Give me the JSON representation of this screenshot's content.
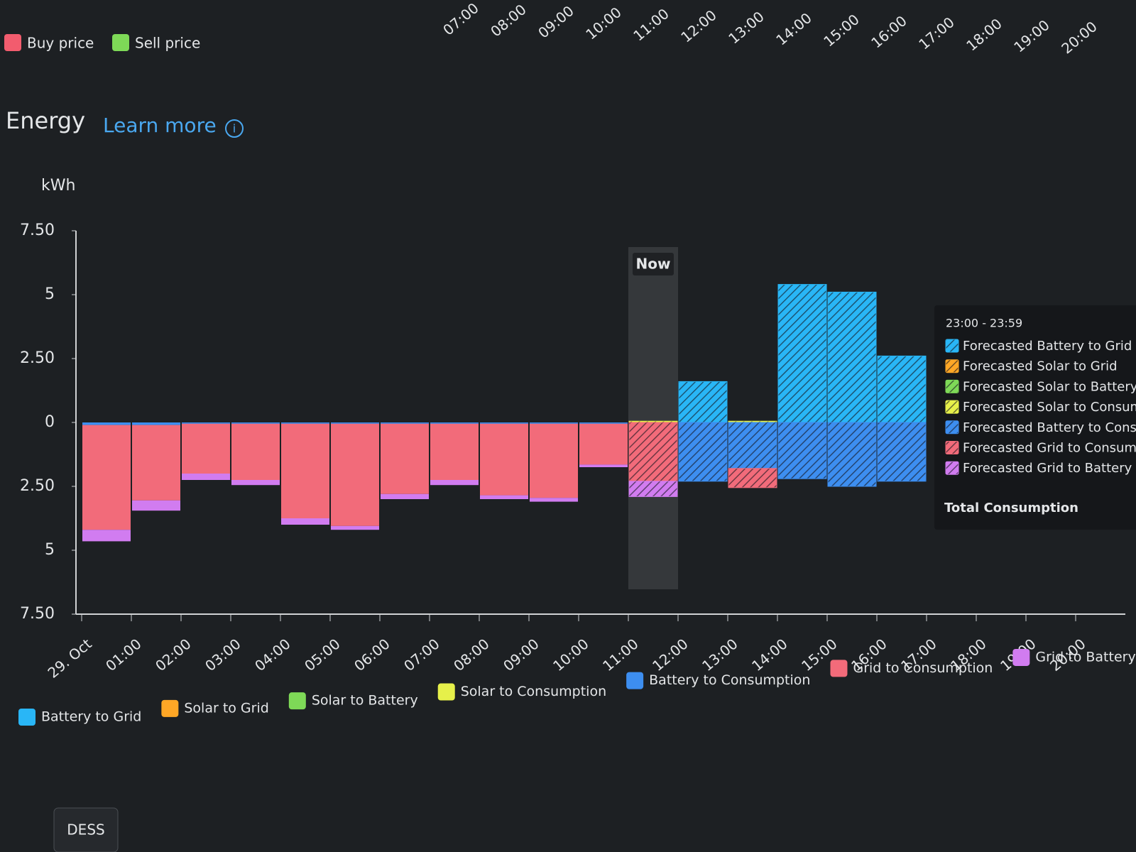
{
  "price_chart": {
    "legend": [
      {
        "name": "Buy price",
        "color": "#f25c6e"
      },
      {
        "name": "Sell price",
        "color": "#7ed957"
      }
    ],
    "x_labels": [
      "07:00",
      "08:00",
      "09:00",
      "10:00",
      "11:00",
      "12:00",
      "13:00",
      "14:00",
      "15:00",
      "16:00",
      "17:00",
      "18:00",
      "19:00",
      "20:00"
    ]
  },
  "header": {
    "title": "Energy",
    "link": "Learn more"
  },
  "chart_data": {
    "type": "bar",
    "stacked": true,
    "y_label": "kWh",
    "categories": [
      "29. Oct",
      "01:00",
      "02:00",
      "03:00",
      "04:00",
      "05:00",
      "06:00",
      "07:00",
      "08:00",
      "09:00",
      "10:00",
      "11:00",
      "12:00",
      "13:00",
      "14:00",
      "15:00",
      "16:00",
      "17:00",
      "18:00",
      "19:00",
      "20:00"
    ],
    "ylim": [
      -7.5,
      7.5
    ],
    "yticks": [
      {
        "value": 7.5,
        "label": "7.50"
      },
      5,
      {
        "value": 2.5,
        "label": "2.50"
      },
      0,
      {
        "value": -2.5,
        "label": "2.50"
      },
      {
        "value": -5,
        "label": "5"
      },
      {
        "value": -7.5,
        "label": "7.50"
      }
    ],
    "grid": false,
    "annotations": [
      {
        "text": "Now",
        "category": "11:00"
      }
    ],
    "series": [
      {
        "name": "Battery to Grid",
        "color": "#29b6f6",
        "hatched": false,
        "values": [
          0,
          0,
          0,
          0,
          0,
          0,
          0,
          0,
          0,
          0,
          0,
          null,
          null,
          null,
          null,
          null,
          null,
          null,
          null,
          null,
          null
        ]
      },
      {
        "name": "Solar to Grid",
        "color": "#ffa726",
        "hatched": false,
        "values": [
          0,
          0,
          0,
          0,
          0,
          0,
          0,
          0,
          0,
          0,
          0,
          null,
          null,
          null,
          null,
          null,
          null,
          null,
          null,
          null,
          null
        ]
      },
      {
        "name": "Solar to Battery",
        "color": "#7ed957",
        "hatched": false,
        "values": [
          0,
          0,
          0,
          0,
          0,
          0,
          0,
          0,
          0,
          0,
          0,
          null,
          null,
          null,
          null,
          null,
          null,
          null,
          null,
          null,
          null
        ]
      },
      {
        "name": "Solar to Consumption",
        "color": "#e6f04a",
        "hatched": false,
        "values": [
          0,
          0,
          0,
          0,
          0,
          0,
          0,
          0,
          0,
          0,
          0,
          null,
          null,
          null,
          null,
          null,
          null,
          null,
          null,
          null,
          null
        ]
      },
      {
        "name": "Battery to Consumption",
        "color": "#3d8ef0",
        "hatched": false,
        "values": [
          -0.1,
          -0.1,
          -0.05,
          -0.05,
          -0.05,
          -0.05,
          -0.05,
          -0.05,
          -0.05,
          -0.05,
          -0.05,
          null,
          null,
          null,
          null,
          null,
          null,
          null,
          null,
          null,
          null
        ]
      },
      {
        "name": "Grid to Consumption",
        "color": "#f26b7a",
        "hatched": false,
        "values": [
          -4.1,
          -2.95,
          -1.95,
          -2.2,
          -3.7,
          -4.0,
          -2.75,
          -2.2,
          -2.8,
          -2.9,
          -1.6,
          null,
          null,
          null,
          null,
          null,
          null,
          null,
          null,
          null,
          null
        ]
      },
      {
        "name": "Grid to Battery",
        "color": "#d17cf0",
        "hatched": false,
        "values": [
          -0.45,
          -0.4,
          -0.25,
          -0.2,
          -0.25,
          -0.15,
          -0.2,
          -0.2,
          -0.15,
          -0.15,
          -0.1,
          null,
          null,
          null,
          null,
          null,
          null,
          null,
          null,
          null,
          null
        ]
      },
      {
        "name": "Forecasted Battery to Grid",
        "color": "#29b6f6",
        "hatched": true,
        "values": [
          null,
          null,
          null,
          null,
          null,
          null,
          null,
          null,
          null,
          null,
          null,
          0,
          1.6,
          0,
          5.4,
          5.1,
          2.6,
          null,
          null,
          null,
          null
        ]
      },
      {
        "name": "Forecasted Solar to Grid",
        "color": "#ffa726",
        "hatched": true,
        "values": [
          null,
          null,
          null,
          null,
          null,
          null,
          null,
          null,
          null,
          null,
          null,
          0,
          0,
          0,
          0,
          0,
          0,
          null,
          null,
          null,
          null
        ]
      },
      {
        "name": "Forecasted Solar to Battery",
        "color": "#7ed957",
        "hatched": true,
        "values": [
          null,
          null,
          null,
          null,
          null,
          null,
          null,
          null,
          null,
          null,
          null,
          0,
          0,
          0,
          0,
          0,
          0,
          null,
          null,
          null,
          null
        ]
      },
      {
        "name": "Forecasted Solar to Consumption",
        "color": "#e6f04a",
        "hatched": true,
        "values": [
          null,
          null,
          null,
          null,
          null,
          null,
          null,
          null,
          null,
          null,
          null,
          0.05,
          0,
          0.05,
          0,
          0,
          0,
          null,
          null,
          null,
          null
        ]
      },
      {
        "name": "Forecasted Battery to Consumption",
        "color": "#3d8ef0",
        "hatched": true,
        "values": [
          null,
          null,
          null,
          null,
          null,
          null,
          null,
          null,
          null,
          null,
          null,
          0,
          -2.3,
          -1.8,
          -2.2,
          -2.5,
          -2.3,
          null,
          null,
          null,
          null
        ]
      },
      {
        "name": "Forecasted Grid to Consumption",
        "color": "#f26b7a",
        "hatched": true,
        "values": [
          null,
          null,
          null,
          null,
          null,
          null,
          null,
          null,
          null,
          null,
          null,
          -2.3,
          0,
          -0.75,
          0,
          0,
          0,
          null,
          null,
          null,
          null
        ]
      },
      {
        "name": "Forecasted Grid to Battery",
        "color": "#d17cf0",
        "hatched": true,
        "values": [
          null,
          null,
          null,
          null,
          null,
          null,
          null,
          null,
          null,
          null,
          null,
          -0.6,
          0,
          0,
          0,
          0,
          0,
          null,
          null,
          null,
          null
        ]
      }
    ]
  },
  "tooltip": {
    "title": "23:00 - 23:59",
    "total_label": "Total Consumption"
  },
  "tabs": [
    "DESS"
  ]
}
